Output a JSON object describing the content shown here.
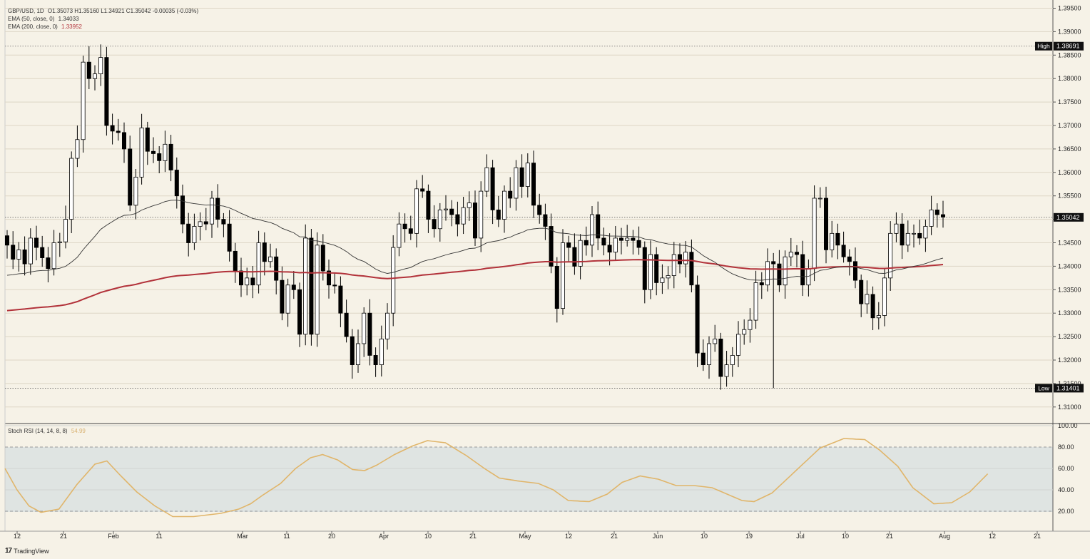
{
  "header": {
    "symbol": "GBP/USD, 1D",
    "ohlc": "O1.35073  H1.35160  L1.34921  C1.35042  -0.00035 (-0.03%)",
    "ema50_label": "EMA (50, close, 0)",
    "ema50_value": "1.34033",
    "ema200_label": "EMA (200, close, 0)",
    "ema200_value": "1.33952"
  },
  "rsi_header": {
    "label": "Stoch RSI (14, 14, 8, 8)",
    "value": "54.99"
  },
  "brand": {
    "name": "TradingView"
  },
  "badges": {
    "high_label": "High",
    "high_value": "1.38691",
    "low_label": "Low",
    "low_value": "1.31401",
    "last_value": "1.35042"
  },
  "colors": {
    "background": "#f6f2e7",
    "bull": "#ffffff",
    "bear": "#000000",
    "ema50": "#333333",
    "ema200": "#b2323a",
    "stoch": "#e0b56a",
    "rsi_band": "#dfe4e2"
  },
  "chart_data": [
    {
      "type": "candlestick",
      "title": "GBP/USD, 1D",
      "ylim": [
        1.307,
        1.396
      ],
      "y_ticks": [
        "1.39500",
        "1.39000",
        "1.38500",
        "1.38000",
        "1.37500",
        "1.37000",
        "1.36500",
        "1.36000",
        "1.35500",
        "1.35000",
        "1.34500",
        "1.34000",
        "1.33500",
        "1.33000",
        "1.32500",
        "1.32000",
        "1.31500",
        "1.31000"
      ],
      "x_ticks": [
        "12",
        "21",
        "Feb",
        "11",
        "Mar",
        "11",
        "20",
        "Apr",
        "10",
        "21",
        "May",
        "12",
        "21",
        "Jun",
        "10",
        "19",
        "Jul",
        "10",
        "21",
        "Aug",
        "12",
        "21"
      ],
      "high": 1.38691,
      "low": 1.31401,
      "last": 1.35042,
      "closes": [
        1.3445,
        1.3415,
        1.3435,
        1.3405,
        1.346,
        1.344,
        1.3418,
        1.3395,
        1.345,
        1.3452,
        1.35,
        1.363,
        1.367,
        1.3835,
        1.38,
        1.381,
        1.3845,
        1.37,
        1.3688,
        1.3685,
        1.365,
        1.353,
        1.359,
        1.3695,
        1.3645,
        1.364,
        1.3625,
        1.366,
        1.3605,
        1.355,
        1.349,
        1.345,
        1.3485,
        1.3495,
        1.349,
        1.3545,
        1.35,
        1.349,
        1.3432,
        1.339,
        1.336,
        1.3375,
        1.336,
        1.345,
        1.341,
        1.342,
        1.337,
        1.33,
        1.336,
        1.335,
        1.3255,
        1.346,
        1.3255,
        1.3445,
        1.339,
        1.336,
        1.3358,
        1.33,
        1.325,
        1.319,
        1.3235,
        1.33,
        1.321,
        1.319,
        1.3245,
        1.33,
        1.344,
        1.349,
        1.348,
        1.347,
        1.3565,
        1.356,
        1.35,
        1.348,
        1.352,
        1.3522,
        1.351,
        1.349,
        1.3525,
        1.3535,
        1.346,
        1.356,
        1.361,
        1.352,
        1.35,
        1.356,
        1.3545,
        1.361,
        1.357,
        1.362,
        1.353,
        1.351,
        1.3485,
        1.34,
        1.331,
        1.345,
        1.344,
        1.34,
        1.3455,
        1.3445,
        1.351,
        1.346,
        1.3445,
        1.343,
        1.346,
        1.3455,
        1.346,
        1.3455,
        1.344,
        1.335,
        1.3425,
        1.3365,
        1.3375,
        1.338,
        1.3425,
        1.3405,
        1.343,
        1.336,
        1.3215,
        1.319,
        1.3235,
        1.3245,
        1.3165,
        1.319,
        1.321,
        1.3255,
        1.3265,
        1.3285,
        1.3365,
        1.336,
        1.341,
        1.3405,
        1.336,
        1.342,
        1.343,
        1.3425,
        1.336,
        1.3395,
        1.3545,
        1.3545,
        1.3435,
        1.347,
        1.3445,
        1.342,
        1.341,
        1.337,
        1.332,
        1.334,
        1.329,
        1.3295,
        1.3375,
        1.347,
        1.349,
        1.3445,
        1.347,
        1.347,
        1.346,
        1.3485,
        1.352,
        1.351,
        1.3505
      ]
    },
    {
      "type": "line",
      "title": "Stoch RSI (14, 14, 8, 8)",
      "ylim": [
        10,
        100
      ],
      "y_ticks": [
        "100.00",
        "80.00",
        "60.00",
        "40.00",
        "20.00"
      ],
      "band": [
        20,
        80
      ],
      "last": 54.99,
      "keypoints": [
        [
          0,
          60
        ],
        [
          4,
          40
        ],
        [
          8,
          25
        ],
        [
          12,
          19
        ],
        [
          18,
          22
        ],
        [
          24,
          45
        ],
        [
          30,
          64
        ],
        [
          34,
          67
        ],
        [
          38,
          55
        ],
        [
          44,
          38
        ],
        [
          50,
          25
        ],
        [
          56,
          15
        ],
        [
          63,
          15
        ],
        [
          72,
          18
        ],
        [
          78,
          22
        ],
        [
          82,
          27
        ],
        [
          86,
          35
        ],
        [
          92,
          46
        ],
        [
          97,
          60
        ],
        [
          102,
          70
        ],
        [
          106,
          73
        ],
        [
          111,
          68
        ],
        [
          116,
          59
        ],
        [
          120,
          58
        ],
        [
          124,
          63
        ],
        [
          130,
          73
        ],
        [
          136,
          81
        ],
        [
          141,
          86
        ],
        [
          147,
          84
        ],
        [
          154,
          72
        ],
        [
          160,
          60
        ],
        [
          165,
          51
        ],
        [
          172,
          48
        ],
        [
          178,
          46
        ],
        [
          183,
          40
        ],
        [
          188,
          30
        ],
        [
          195,
          29
        ],
        [
          201,
          36
        ],
        [
          206,
          47
        ],
        [
          212,
          53
        ],
        [
          218,
          50
        ],
        [
          224,
          44
        ],
        [
          230,
          44
        ],
        [
          236,
          42
        ],
        [
          241,
          36
        ],
        [
          246,
          30
        ],
        [
          250,
          29
        ],
        [
          256,
          37
        ],
        [
          264,
          58
        ],
        [
          272,
          79
        ],
        [
          280,
          88
        ],
        [
          287,
          87
        ],
        [
          292,
          77
        ],
        [
          298,
          62
        ],
        [
          303,
          42
        ],
        [
          310,
          27
        ],
        [
          316,
          28
        ],
        [
          322,
          38
        ],
        [
          328,
          55
        ]
      ]
    }
  ]
}
